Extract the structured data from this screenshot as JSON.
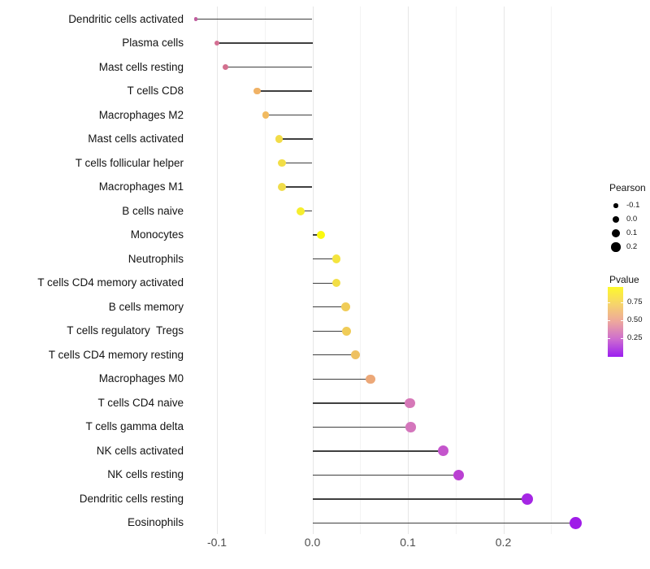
{
  "chart_data": {
    "type": "lollipop",
    "title": "",
    "xlabel": "",
    "ylabel": "",
    "x_ticks": [
      -0.1,
      0.0,
      0.1,
      0.2
    ],
    "x_tick_labels": [
      "-0.1",
      "0.0",
      "0.1",
      "0.2"
    ],
    "x_minor_gridlines": [
      -0.05,
      0.05,
      0.15,
      0.25
    ],
    "xlim": [
      -0.143,
      0.297
    ],
    "grid": "vertical-only",
    "stem_color": "#3f3f3f",
    "rows": [
      {
        "label": "Dendritic cells activated",
        "pearson": -0.122,
        "dot_color": "#c05d9e",
        "dot_diameter": 4.5
      },
      {
        "label": "Plasma cells",
        "pearson": -0.1,
        "dot_color": "#d46f93",
        "dot_diameter": 6.5
      },
      {
        "label": "Mast cells resting",
        "pearson": -0.091,
        "dot_color": "#d3708f",
        "dot_diameter": 7
      },
      {
        "label": "T cells CD8",
        "pearson": -0.058,
        "dot_color": "#f0b266",
        "dot_diameter": 8.5
      },
      {
        "label": "Macrophages M2",
        "pearson": -0.049,
        "dot_color": "#f1ba60",
        "dot_diameter": 8.5
      },
      {
        "label": "Mast cells activated",
        "pearson": -0.035,
        "dot_color": "#f2dc48",
        "dot_diameter": 9.5
      },
      {
        "label": "T cells follicular helper",
        "pearson": -0.032,
        "dot_color": "#f2de46",
        "dot_diameter": 9.5
      },
      {
        "label": "Macrophages M1",
        "pearson": -0.032,
        "dot_color": "#f0dc4a",
        "dot_diameter": 10
      },
      {
        "label": "B cells naive",
        "pearson": -0.012,
        "dot_color": "#f6ee2e",
        "dot_diameter": 10
      },
      {
        "label": "Monocytes",
        "pearson": 0.009,
        "dot_color": "#fbf90f",
        "dot_diameter": 10.5
      },
      {
        "label": "Neutrophils",
        "pearson": 0.025,
        "dot_color": "#f4e43e",
        "dot_diameter": 10.5
      },
      {
        "label": "T cells CD4 memory activated",
        "pearson": 0.025,
        "dot_color": "#f2de46",
        "dot_diameter": 10.5
      },
      {
        "label": "B cells memory",
        "pearson": 0.035,
        "dot_color": "#f0cc58",
        "dot_diameter": 11
      },
      {
        "label": "T cells regulatory  Tregs",
        "pearson": 0.036,
        "dot_color": "#f0cc58",
        "dot_diameter": 11
      },
      {
        "label": "T cells CD4 memory resting",
        "pearson": 0.045,
        "dot_color": "#eec162",
        "dot_diameter": 11
      },
      {
        "label": "Macrophages M0",
        "pearson": 0.061,
        "dot_color": "#eca878",
        "dot_diameter": 11.5
      },
      {
        "label": "T cells CD4 naive",
        "pearson": 0.102,
        "dot_color": "#d678b8",
        "dot_diameter": 12.5
      },
      {
        "label": "T cells gamma delta",
        "pearson": 0.103,
        "dot_color": "#d476bc",
        "dot_diameter": 12.5
      },
      {
        "label": "NK cells activated",
        "pearson": 0.137,
        "dot_color": "#c455cc",
        "dot_diameter": 13
      },
      {
        "label": "NK cells resting",
        "pearson": 0.153,
        "dot_color": "#ba40d2",
        "dot_diameter": 13.5
      },
      {
        "label": "Dendritic cells resting",
        "pearson": 0.225,
        "dot_color": "#a526e4",
        "dot_diameter": 14
      },
      {
        "label": "Eosinophils",
        "pearson": 0.276,
        "dot_color": "#9f1ce8",
        "dot_diameter": 15
      }
    ],
    "legend_pearson": {
      "title": "Pearson",
      "entries": [
        {
          "label": "-0.1",
          "dot_diameter": 5.5
        },
        {
          "label": "0.0",
          "dot_diameter": 8.5
        },
        {
          "label": "0.1",
          "dot_diameter": 10
        },
        {
          "label": "0.2",
          "dot_diameter": 11.5
        }
      ]
    },
    "legend_pvalue": {
      "title": "Pvalue",
      "tick_labels": [
        "0.75",
        "0.50",
        "0.25"
      ],
      "gradient_bottom_to_top": [
        "#9b1ef0",
        "#cd6cd0",
        "#eda69e",
        "#f6d36c",
        "#fdf92b"
      ]
    }
  }
}
